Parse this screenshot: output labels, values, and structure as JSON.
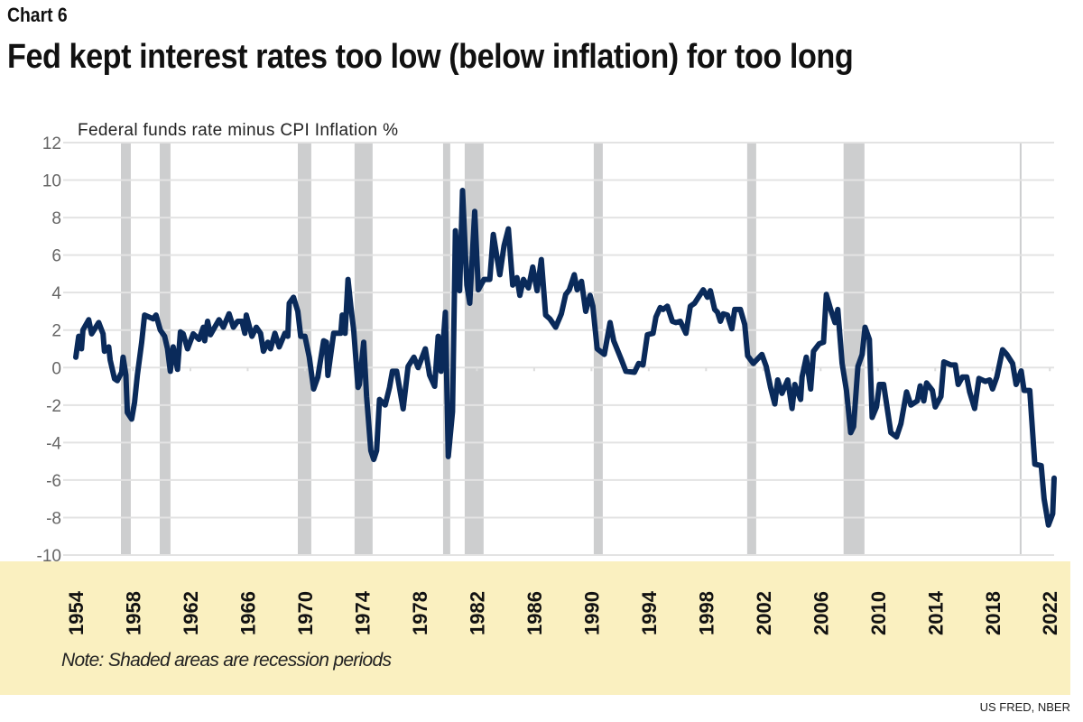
{
  "kicker": "Chart 6",
  "title": "Fed kept interest rates too low (below inflation) for too long",
  "source": "US FRED, NBER",
  "chart_data": {
    "type": "line",
    "ylabel": "Federal funds rate minus CPI Inflation %",
    "xlim": [
      1954,
      2022.3
    ],
    "ylim": [
      -10,
      12
    ],
    "yticks": [
      12,
      10,
      8,
      6,
      4,
      2,
      0,
      -2,
      -4,
      -6,
      -8,
      -10
    ],
    "xticks": [
      1954,
      1958,
      1962,
      1966,
      1970,
      1974,
      1978,
      1982,
      1986,
      1990,
      1994,
      1998,
      2002,
      2006,
      2010,
      2014,
      2018,
      2022
    ],
    "grid": true,
    "note": "Note: Shaded areas are recession periods",
    "colors": {
      "line": "#0a2a5a",
      "recession": "#cdcecf",
      "grid": "#e3e3e3",
      "note_band": "#faf0c0"
    },
    "recessions": [
      [
        1957.15,
        1957.84
      ],
      [
        1959.86,
        1960.61
      ],
      [
        1969.5,
        1970.44
      ],
      [
        1973.46,
        1974.72
      ],
      [
        1979.64,
        1980.14
      ],
      [
        1981.15,
        1982.47
      ],
      [
        1990.16,
        1990.79
      ],
      [
        2000.87,
        2001.5
      ],
      [
        2007.6,
        2009.06
      ],
      [
        2019.9,
        2019.98
      ]
    ],
    "series": [
      {
        "x": [
          1954.0,
          1954.2,
          1954.4,
          1954.5,
          1954.9,
          1955.1,
          1955.6,
          1955.9,
          1956.0,
          1956.3,
          1956.4,
          1956.7,
          1956.9,
          1957.2,
          1957.3,
          1957.5,
          1957.6,
          1957.9,
          1958.1,
          1958.3,
          1958.6,
          1958.8,
          1959.4,
          1959.6,
          1959.9,
          1960.2,
          1960.4,
          1960.6,
          1960.8,
          1961.1,
          1961.3,
          1961.5,
          1961.8,
          1962.2,
          1962.6,
          1962.9,
          1963.0,
          1963.2,
          1963.4,
          1964.0,
          1964.3,
          1964.7,
          1965.0,
          1965.3,
          1965.6,
          1965.8,
          1965.9,
          1966.3,
          1966.6,
          1966.9,
          1967.1,
          1967.4,
          1967.6,
          1967.9,
          1968.2,
          1968.6,
          1968.8,
          1968.9,
          1969.2,
          1969.5,
          1969.7,
          1970.0,
          1970.3,
          1970.6,
          1970.9,
          1971.3,
          1971.5,
          1971.6,
          1972.0,
          1972.5,
          1972.6,
          1972.8,
          1973.0,
          1973.2,
          1973.4,
          1973.7,
          1973.8,
          1974.1,
          1974.3,
          1974.6,
          1974.8,
          1975.0,
          1975.2,
          1975.6,
          1975.9,
          1976.1,
          1976.4,
          1976.85,
          1977.2,
          1977.6,
          1977.9,
          1978.4,
          1978.7,
          1979.05,
          1979.3,
          1979.5,
          1979.8,
          1980.0,
          1980.3,
          1980.5,
          1980.8,
          1981.0,
          1981.3,
          1981.5,
          1981.85,
          1982.1,
          1982.5,
          1982.9,
          1983.15,
          1983.6,
          1983.9,
          1984.2,
          1984.5,
          1984.8,
          1985.0,
          1985.25,
          1985.6,
          1985.9,
          1986.2,
          1986.5,
          1986.8,
          1987.1,
          1987.5,
          1987.9,
          1988.2,
          1988.45,
          1988.8,
          1989.0,
          1989.3,
          1989.6,
          1989.9,
          1990.1,
          1990.4,
          1990.9,
          1991.3,
          1991.55,
          1992.1,
          1992.4,
          1993.0,
          1993.3,
          1993.6,
          1993.9,
          1994.3,
          1994.5,
          1994.8,
          1995.0,
          1995.3,
          1995.65,
          1995.9,
          1996.2,
          1996.6,
          1996.9,
          1997.2,
          1997.4,
          1997.8,
          1998.1,
          1998.3,
          1998.6,
          1998.8,
          1999.0,
          1999.2,
          1999.5,
          1999.8,
          2000.0,
          2000.4,
          2000.7,
          2000.9,
          2001.3,
          2001.9,
          2002.2,
          2002.5,
          2002.8,
          2003.0,
          2003.3,
          2003.7,
          2004.0,
          2004.2,
          2004.6,
          2004.7,
          2005.0,
          2005.3,
          2005.5,
          2005.9,
          2006.2,
          2006.4,
          2006.7,
          2007.0,
          2007.2,
          2007.5,
          2007.8,
          2008.1,
          2008.3,
          2008.6,
          2008.9,
          2009.1,
          2009.4,
          2009.6,
          2009.9,
          2010.1,
          2010.4,
          2010.9,
          2011.3,
          2011.6,
          2012.0,
          2012.3,
          2012.75,
          2012.95,
          2013.2,
          2013.4,
          2013.8,
          2014.0,
          2014.4,
          2014.6,
          2015.1,
          2015.4,
          2015.6,
          2015.9,
          2016.2,
          2016.4,
          2016.75,
          2017.05,
          2017.5,
          2017.8,
          2018.0,
          2018.3,
          2018.7,
          2019.0,
          2019.4,
          2019.65,
          2020.0,
          2020.2,
          2020.6,
          2020.95,
          2021.4,
          2021.6,
          2021.9,
          2022.2,
          2022.3
        ],
        "y": [
          0.55,
          1.67,
          1.0,
          2.0,
          2.55,
          1.8,
          2.4,
          1.8,
          0.87,
          1.1,
          0.4,
          -0.6,
          -0.7,
          -0.25,
          0.55,
          -0.4,
          -2.4,
          -2.75,
          -1.85,
          -0.4,
          1.35,
          2.8,
          2.6,
          2.8,
          2.0,
          1.67,
          1.0,
          -0.2,
          1.1,
          -0.1,
          1.9,
          1.8,
          1.0,
          1.8,
          1.5,
          2.15,
          1.43,
          2.47,
          1.75,
          2.55,
          2.15,
          2.87,
          2.15,
          2.47,
          2.47,
          1.83,
          2.8,
          1.67,
          2.15,
          1.83,
          0.87,
          1.35,
          1.0,
          1.83,
          1.1,
          1.83,
          1.67,
          3.43,
          3.75,
          3.0,
          1.67,
          1.67,
          0.55,
          -1.14,
          -0.5,
          1.43,
          1.35,
          -0.42,
          1.83,
          1.83,
          2.8,
          1.83,
          4.7,
          3.27,
          2.0,
          -1.06,
          -0.9,
          1.35,
          -1.54,
          -4.43,
          -4.9,
          -4.43,
          -1.7,
          -2.0,
          -1.06,
          -0.2,
          -0.2,
          -2.2,
          0.06,
          0.55,
          0.0,
          1.0,
          -0.4,
          -1.0,
          1.67,
          -0.2,
          2.95,
          -4.75,
          -2.35,
          7.3,
          4.1,
          9.45,
          4.4,
          3.43,
          8.33,
          4.15,
          4.7,
          4.7,
          7.1,
          4.95,
          6.5,
          7.4,
          4.4,
          4.8,
          3.85,
          4.7,
          4.25,
          5.36,
          4.1,
          5.76,
          2.8,
          2.6,
          2.15,
          2.87,
          3.9,
          4.15,
          4.95,
          4.15,
          4.6,
          3.0,
          3.85,
          3.27,
          1.0,
          0.7,
          2.4,
          1.43,
          0.4,
          -0.2,
          -0.25,
          0.22,
          0.14,
          1.75,
          1.83,
          2.7,
          3.2,
          3.1,
          3.27,
          2.47,
          2.4,
          2.47,
          1.83,
          3.27,
          3.43,
          3.67,
          4.15,
          3.75,
          4.1,
          3.1,
          2.95,
          2.47,
          2.87,
          2.8,
          2.07,
          3.1,
          3.1,
          2.3,
          0.63,
          0.22,
          0.7,
          0.06,
          -1.06,
          -1.94,
          -0.66,
          -1.38,
          -0.66,
          -2.18,
          -0.9,
          -1.7,
          -0.5,
          0.55,
          -1.14,
          0.87,
          1.27,
          1.35,
          3.9,
          3.1,
          2.4,
          3.1,
          0.22,
          -1.22,
          -3.47,
          -3.15,
          0.06,
          0.7,
          2.15,
          1.5,
          -2.66,
          -2.1,
          -0.9,
          -0.9,
          -3.47,
          -3.7,
          -3.0,
          -1.3,
          -2.0,
          -1.78,
          -0.98,
          -1.78,
          -0.82,
          -1.22,
          -2.1,
          -1.54,
          0.3,
          0.14,
          0.14,
          -0.9,
          -0.5,
          -0.5,
          -1.3,
          -2.18,
          -0.58,
          -0.74,
          -0.66,
          -1.14,
          -0.5,
          0.95,
          0.7,
          0.22,
          -0.9,
          -0.18,
          -1.22,
          -1.22,
          -5.15,
          -5.23,
          -7.0,
          -8.4,
          -7.8,
          -5.9
        ]
      }
    ]
  }
}
